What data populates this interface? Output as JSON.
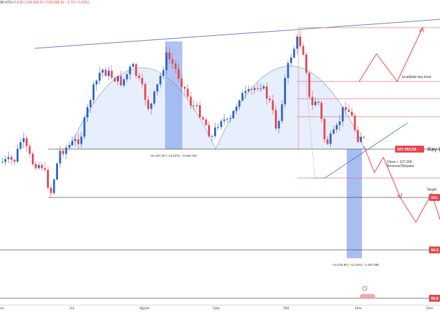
{
  "header": {
    "timeframe_label": "00 UTC+7",
    "ohlc_fragment": "8,45  L106.509,61  C106.509,61  −3,70 (−0,00%)"
  },
  "colors": {
    "background": "#ffffff",
    "up_candle": "#2f62c9",
    "down_candle": "#e8454f",
    "trendline": "#6b7fbf",
    "zone_fill": "#e3ebfb",
    "highlight_column": "#6e93e8",
    "red_level": "#e47a80",
    "dark_level": "#555555",
    "price_tag_red": "#e8454f",
    "projection": "#e8454f",
    "blue_trend": "#4f7ad6"
  },
  "chart_data": {
    "type": "candlestick",
    "title": "",
    "x_ticks": [
      "un",
      "Jul",
      "Agust",
      "Sep",
      "Okt",
      "Nov",
      "Des"
    ],
    "y_range": [
      85000,
      112000
    ],
    "price_levels": [
      {
        "label": "107.452,58",
        "value": 107452.58,
        "style": "red-tag",
        "note": "Key L"
      },
      {
        "label": "101.",
        "value": 101900,
        "style": "red-tag",
        "note": "Target"
      },
      {
        "label": "94.3",
        "value": 94300,
        "style": "red-tag"
      },
      {
        "label": "86.8",
        "value": 86800,
        "style": "red-tag"
      }
    ],
    "red_horizontal_levels": [
      {
        "value": 110300,
        "label": "Invalidate key level"
      },
      {
        "value": 108700
      },
      {
        "value": 107600
      },
      {
        "value": 104800
      }
    ],
    "annotations": {
      "neckline_measure": "−16.197,25 (−13,10%) −3.618.729",
      "target_measure": "−14.376,89 (−13,10%) −1.407.689",
      "close_note_line1": "Close < 107,000",
      "close_note_line2": "Reversal Berjalan",
      "invalidate_label": "Invalidate key level",
      "key_level_label": "Key L",
      "target_label": "Target"
    },
    "patterns": [
      "double-top",
      "descending projection"
    ],
    "grid": false,
    "legend": "none"
  }
}
